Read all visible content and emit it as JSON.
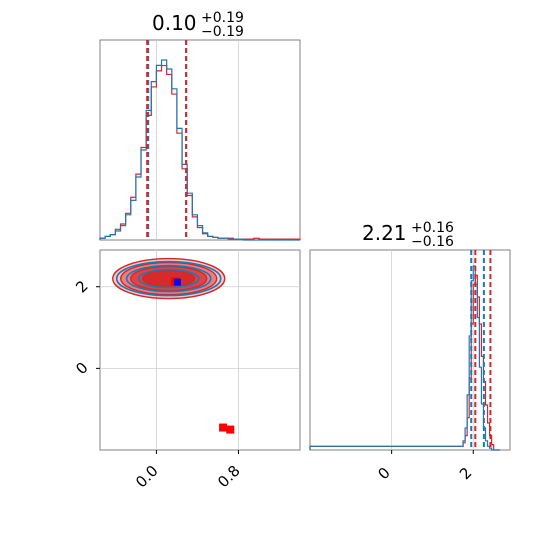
{
  "chart_data": {
    "type": "corner",
    "colors": {
      "blue": "#1f77b4",
      "red": "#d62728",
      "blue_marker": "#0000ff",
      "red_marker": "#ff0000",
      "grid": "#cfcfcf",
      "frame": "#808080"
    },
    "parameters": [
      {
        "title_value": "0.10",
        "title_plus": "+0.19",
        "title_minus": "−0.19",
        "range": [
          -0.55,
          1.4
        ],
        "quantiles_blue": [
          -0.08,
          0.29
        ],
        "quantiles_red": [
          -0.09,
          0.29
        ],
        "histogram_bins": [
          -0.55,
          -0.5,
          -0.45,
          -0.4,
          -0.35,
          -0.3,
          -0.25,
          -0.2,
          -0.15,
          -0.1,
          -0.05,
          0.0,
          0.05,
          0.1,
          0.15,
          0.2,
          0.25,
          0.3,
          0.35,
          0.4,
          0.45,
          0.5,
          0.55,
          0.6,
          0.65,
          0.7,
          0.75,
          0.8,
          0.85,
          0.9,
          0.95,
          1.0,
          1.05,
          1.1,
          1.15,
          1.2,
          1.25,
          1.3,
          1.35,
          1.4
        ],
        "histogram_blue": [
          0.01,
          0.02,
          0.03,
          0.05,
          0.08,
          0.14,
          0.22,
          0.35,
          0.5,
          0.72,
          0.88,
          0.97,
          1.0,
          0.95,
          0.84,
          0.62,
          0.42,
          0.26,
          0.14,
          0.08,
          0.04,
          0.02,
          0.015,
          0.01,
          0.01,
          0.005,
          0.005,
          0.005,
          0.0,
          0.0,
          0.0,
          0.0,
          0.0,
          0.0,
          0.0,
          0.0,
          0.0,
          0.0,
          0.0
        ],
        "histogram_red": [
          0.01,
          0.02,
          0.03,
          0.06,
          0.09,
          0.15,
          0.24,
          0.37,
          0.52,
          0.7,
          0.86,
          0.95,
          0.98,
          0.93,
          0.82,
          0.6,
          0.4,
          0.25,
          0.13,
          0.07,
          0.035,
          0.02,
          0.015,
          0.01,
          0.01,
          0.01,
          0.005,
          0.005,
          0.005,
          0.005,
          0.01,
          0.005,
          0.005,
          0.005,
          0.005,
          0.005,
          0.005,
          0.005,
          0.005
        ]
      },
      {
        "title_value": "2.21",
        "title_plus": "+0.16",
        "title_minus": "−0.16",
        "range": [
          -2.0,
          2.9
        ],
        "quantiles_blue": [
          1.95,
          2.26
        ],
        "quantiles_red": [
          2.05,
          2.42
        ],
        "histogram_bins": [
          -2.0,
          1.7,
          1.75,
          1.8,
          1.85,
          1.9,
          1.95,
          2.0,
          2.05,
          2.1,
          2.15,
          2.2,
          2.25,
          2.3,
          2.35,
          2.4,
          2.45,
          2.5,
          2.55,
          2.6,
          2.65
        ],
        "histogram_blue": [
          0.02,
          0.02,
          0.05,
          0.12,
          0.3,
          0.62,
          0.92,
          1.0,
          0.9,
          0.72,
          0.45,
          0.25,
          0.12,
          0.05,
          0.02,
          0.01,
          0.0,
          0.0,
          0.0,
          0.0
        ],
        "histogram_red": [
          0.02,
          0.02,
          0.04,
          0.08,
          0.18,
          0.4,
          0.7,
          0.92,
          0.97,
          0.85,
          0.7,
          0.52,
          0.38,
          0.25,
          0.15,
          0.08,
          0.03,
          0.0,
          0.0,
          0.0
        ]
      }
    ],
    "joint": {
      "x_range": [
        -0.55,
        1.4
      ],
      "y_range": [
        -2.0,
        2.9
      ],
      "blue_contour_center": [
        0.12,
        2.2
      ],
      "red_contour_center": [
        0.12,
        2.2
      ],
      "marker_blue": [
        0.2,
        2.1
      ],
      "marker_red": [
        0.2,
        2.1
      ],
      "outlier_markers_red": [
        [
          0.65,
          -1.45
        ],
        [
          0.72,
          -1.5
        ]
      ]
    },
    "x_ticks_param1": [
      {
        "value": 0.0,
        "label": "0.0"
      },
      {
        "value": 0.8,
        "label": "0.8"
      }
    ],
    "y_ticks_param2": [
      {
        "value": 0.0,
        "label": "0"
      },
      {
        "value": 2.0,
        "label": "2"
      }
    ],
    "x_ticks_param2": [
      {
        "value": 0.0,
        "label": "0"
      },
      {
        "value": 2.0,
        "label": "2"
      }
    ]
  }
}
